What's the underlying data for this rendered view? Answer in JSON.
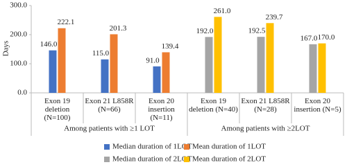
{
  "chart_data": {
    "type": "bar",
    "y_label": "Days",
    "categories": [
      "Exon 19\ndeletion\n(N=100)",
      "Exon 21 L858R\n(N=66)",
      "Exon 20\ninsertion\n(N=11)",
      "Exon 19\ndeletion (N=40)",
      "Exon 21 L858R\n(N=28)",
      "Exon 20\ninsertion (N=5)"
    ],
    "group_labels": [
      "Among patients with ≥1 LOT",
      "Among patients with ≥2LOT"
    ],
    "series": [
      {
        "name": "Median duration of 1LOT",
        "color": "#4472c4",
        "values": [
          146,
          115,
          91,
          null,
          null,
          null
        ],
        "value_labels": [
          "146.0",
          "115.0",
          "91.0",
          null,
          null,
          null
        ]
      },
      {
        "name": "Mean duration of 1LOT",
        "color": "#ed7d31",
        "values": [
          222.1,
          201.3,
          139.4,
          null,
          null,
          null
        ],
        "value_labels": [
          "222.1",
          "201.3",
          "139.4",
          null,
          null,
          null
        ]
      },
      {
        "name": "Median duration of 2LOT",
        "color": "#a5a5a5",
        "values": [
          null,
          null,
          null,
          192,
          192.5,
          167
        ],
        "value_labels": [
          null,
          null,
          null,
          "192.0",
          "192.5",
          "167.0"
        ]
      },
      {
        "name": "Mean duration of 2LOT",
        "color": "#ffc000",
        "values": [
          null,
          null,
          null,
          261,
          239.7,
          170
        ],
        "value_labels": [
          null,
          null,
          null,
          "261.0",
          "239.7",
          "170.0"
        ]
      }
    ],
    "ylim": [
      0,
      300
    ],
    "yticks": [
      {
        "value": 0,
        "label": "0.0"
      },
      {
        "value": 100,
        "label": "100.0"
      },
      {
        "value": 200,
        "label": "200.0"
      },
      {
        "value": 300,
        "label": "300.0"
      }
    ]
  }
}
